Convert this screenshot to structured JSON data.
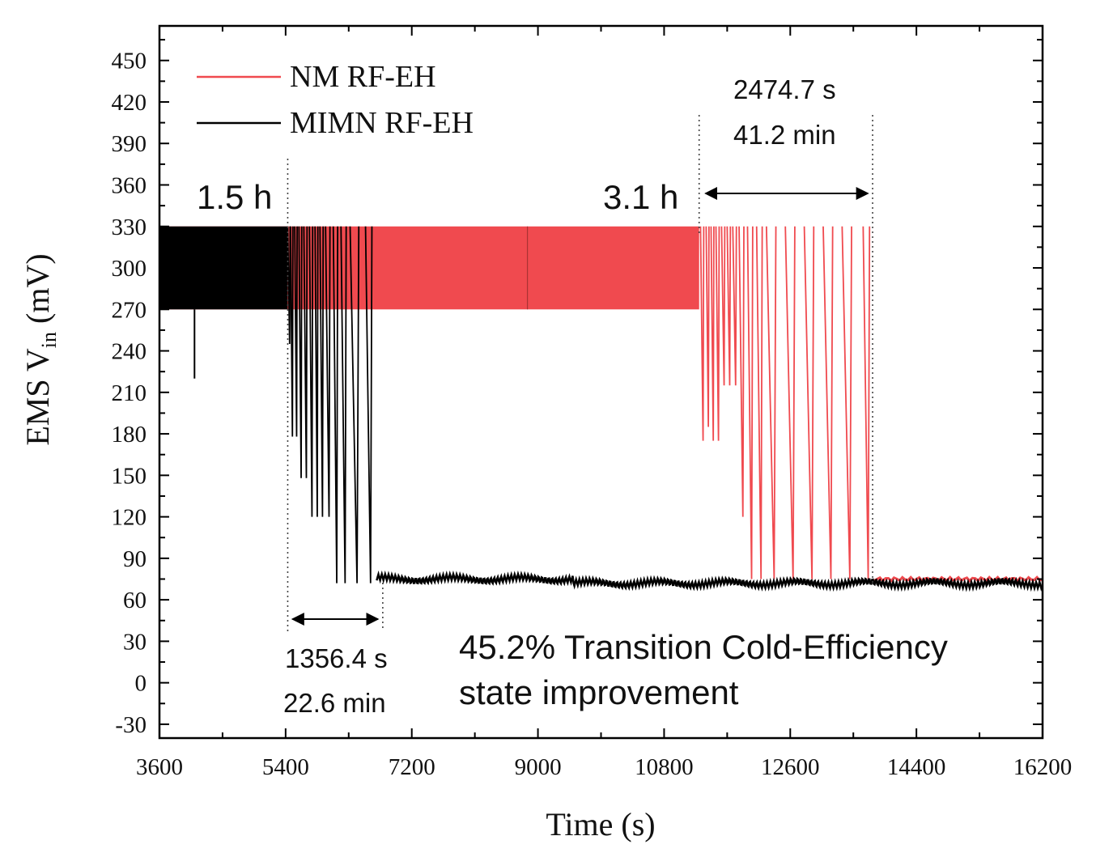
{
  "chart_data": {
    "type": "line",
    "xlabel": "Time (s)",
    "ylabel_main": "EMS V",
    "ylabel_sub": "in",
    "ylabel_unit": " (mV)",
    "xlim": [
      3600,
      16200
    ],
    "ylim": [
      -40,
      475
    ],
    "xticks": [
      3600,
      5400,
      7200,
      9000,
      10800,
      12600,
      14400,
      16200
    ],
    "yticks": [
      -30,
      0,
      30,
      60,
      90,
      120,
      150,
      180,
      210,
      240,
      270,
      300,
      330,
      360,
      390,
      420,
      450
    ],
    "legend_position": "top-left",
    "series": [
      {
        "name": "NM RF-EH",
        "color": "#f04a4f",
        "steady": {
          "x_start": 3600,
          "x_end": 11300,
          "y_low": 270,
          "y_high": 330
        },
        "discharge_cycles": [
          {
            "x": 11320,
            "y_min": 175
          },
          {
            "x": 11400,
            "y_min": 185
          },
          {
            "x": 11470,
            "y_min": 175
          },
          {
            "x": 11540,
            "y_min": 175
          },
          {
            "x": 11620,
            "y_min": 215
          },
          {
            "x": 11700,
            "y_min": 215
          },
          {
            "x": 11780,
            "y_min": 215
          },
          {
            "x": 11870,
            "y_min": 120
          },
          {
            "x": 11990,
            "y_min": 75
          },
          {
            "x": 12120,
            "y_min": 75
          },
          {
            "x": 12260,
            "y_min": 75
          },
          {
            "x": 12530,
            "y_min": 75
          },
          {
            "x": 12800,
            "y_min": 75
          },
          {
            "x": 13070,
            "y_min": 75
          },
          {
            "x": 13340,
            "y_min": 75
          },
          {
            "x": 13640,
            "y_min": 75
          }
        ],
        "final_level": 75,
        "final_x": 13800
      },
      {
        "name": "MIMN RF-EH",
        "color": "#000000",
        "steady": {
          "x_start": 3600,
          "x_end": 5430,
          "y_low": 270,
          "y_high": 330
        },
        "outlier": {
          "x": 4100,
          "y_min": 220
        },
        "discharge_cycles": [
          {
            "x": 5430,
            "y_min": 245
          },
          {
            "x": 5470,
            "y_min": 178
          },
          {
            "x": 5530,
            "y_min": 178
          },
          {
            "x": 5590,
            "y_min": 148
          },
          {
            "x": 5660,
            "y_min": 148
          },
          {
            "x": 5740,
            "y_min": 120
          },
          {
            "x": 5820,
            "y_min": 120
          },
          {
            "x": 5890,
            "y_min": 120
          },
          {
            "x": 5970,
            "y_min": 120
          },
          {
            "x": 6080,
            "y_min": 72
          },
          {
            "x": 6190,
            "y_min": 72
          },
          {
            "x": 6320,
            "y_min": 72
          },
          {
            "x": 6540,
            "y_min": 72
          }
        ],
        "final_level": 73,
        "final_x": 6700
      }
    ],
    "annotations": {
      "mimn_time_label": "1.5 h",
      "nm_time_label": "3.1 h",
      "mimn_marker_x": 5430,
      "mimn_transition_end_x": 6786,
      "mimn_duration_s": "1356.4 s",
      "mimn_duration_min": "22.6 min",
      "nm_marker_x": 11300,
      "nm_transition_end_x": 13775,
      "nm_duration_s": "2474.7 s",
      "nm_duration_min": "41.2 min",
      "note_line1": "45.2% Transition Cold-Efficiency",
      "note_line2": "state improvement"
    }
  }
}
